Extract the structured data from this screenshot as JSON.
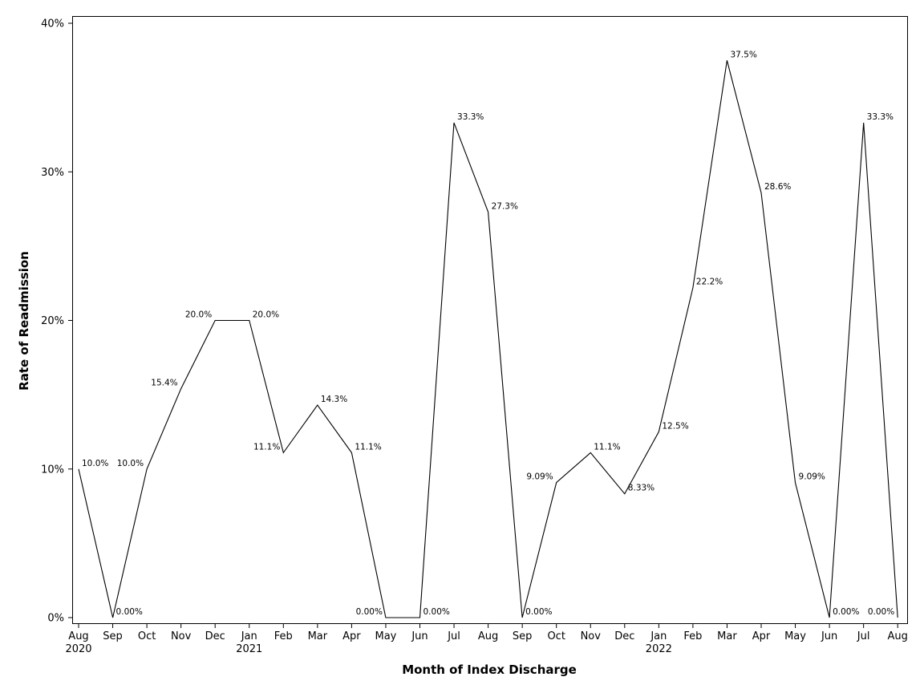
{
  "chart_data": {
    "type": "line",
    "title": "",
    "xlabel": "Month of Index Discharge",
    "ylabel": "Rate of Readmission",
    "ylim": [
      0,
      40
    ],
    "y_ticks": [
      0,
      10,
      20,
      30,
      40
    ],
    "y_tick_labels": [
      "0%",
      "10%",
      "20%",
      "30%",
      "40%"
    ],
    "grid": false,
    "legend": "none",
    "categories": [
      "Aug",
      "Sep",
      "Oct",
      "Nov",
      "Dec",
      "Jan",
      "Feb",
      "Mar",
      "Apr",
      "May",
      "Jun",
      "Jul",
      "Aug",
      "Sep",
      "Oct",
      "Nov",
      "Dec",
      "Jan",
      "Feb",
      "Mar",
      "Apr",
      "May",
      "Jun",
      "Jul",
      "Aug"
    ],
    "year_labels": [
      {
        "index": 0,
        "label": "2020"
      },
      {
        "index": 5,
        "label": "2021"
      },
      {
        "index": 17,
        "label": "2022"
      }
    ],
    "values": [
      10.0,
      0.0,
      10.0,
      15.4,
      20.0,
      20.0,
      11.1,
      14.3,
      11.1,
      0.0,
      0.0,
      33.3,
      27.3,
      0.0,
      9.09,
      11.1,
      8.33,
      12.5,
      22.2,
      37.5,
      28.6,
      9.09,
      0.0,
      33.3,
      0.0
    ],
    "data_labels": [
      "10.0%",
      "0.00%",
      "10.0%",
      "15.4%",
      "20.0%",
      "20.0%",
      "11.1%",
      "14.3%",
      "11.1%",
      "0.00%",
      "0.00%",
      "33.3%",
      "27.3%",
      "0.00%",
      "9.09%",
      "11.1%",
      "8.33%",
      "12.5%",
      "22.2%",
      "37.5%",
      "28.6%",
      "9.09%",
      "0.00%",
      "33.3%",
      "0.00%"
    ],
    "data_label_sides": [
      "right",
      "right",
      "left",
      "left",
      "left",
      "right",
      "left",
      "right",
      "right",
      "left",
      "right",
      "right",
      "right",
      "right",
      "left",
      "right",
      "right",
      "right",
      "right",
      "right",
      "right",
      "right",
      "right",
      "right",
      "left"
    ],
    "line_color": "#000000"
  }
}
